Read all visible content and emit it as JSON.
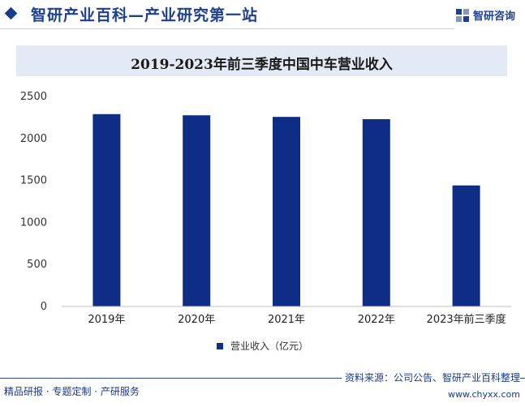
{
  "header": {
    "title": "智研产业百科—产业研究第一站",
    "brand_name": "智研咨询",
    "brand_icon": "zhiyan-logo-icon"
  },
  "chart_data": {
    "type": "bar",
    "title": "2019-2023年前三季度中国中车营业收入",
    "categories": [
      "2019年",
      "2020年",
      "2021年",
      "2022年",
      "2023年前三季度"
    ],
    "series": [
      {
        "name": "营业收入（亿元）",
        "values": [
          2290,
          2276,
          2257,
          2230,
          1441
        ],
        "color": "#0d2d86"
      }
    ],
    "y_ticks": [
      "0",
      "500",
      "1000",
      "1500",
      "2000",
      "2500"
    ],
    "ylim": [
      0,
      2500
    ],
    "xlabel": "",
    "ylabel": "",
    "grid": false,
    "legend_position": "bottom"
  },
  "footer": {
    "left": "精品研报 · 专题定制 · 产研服务",
    "source": "资料来源：公司公告、智研产业百科整理",
    "url": "www.chyxx.com"
  }
}
